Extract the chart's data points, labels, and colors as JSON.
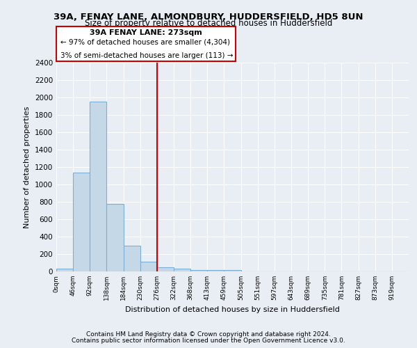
{
  "title1": "39A, FENAY LANE, ALMONDBURY, HUDDERSFIELD, HD5 8UN",
  "title2": "Size of property relative to detached houses in Huddersfield",
  "xlabel": "Distribution of detached houses by size in Huddersfield",
  "ylabel": "Number of detached properties",
  "x_labels": [
    "0sqm",
    "46sqm",
    "92sqm",
    "138sqm",
    "184sqm",
    "230sqm",
    "276sqm",
    "322sqm",
    "368sqm",
    "413sqm",
    "459sqm",
    "505sqm",
    "551sqm",
    "597sqm",
    "643sqm",
    "689sqm",
    "735sqm",
    "781sqm",
    "827sqm",
    "873sqm",
    "919sqm"
  ],
  "bar_values": [
    35,
    1140,
    1950,
    780,
    300,
    110,
    45,
    35,
    20,
    15,
    15,
    0,
    0,
    0,
    0,
    0,
    0,
    0,
    0,
    0,
    0
  ],
  "bar_color": "#c5d8e8",
  "bar_edge_color": "#7bafd4",
  "red_line_x": 6,
  "red_line_color": "#cc0000",
  "annotation_title": "39A FENAY LANE: 273sqm",
  "annotation_line1": "← 97% of detached houses are smaller (4,304)",
  "annotation_line2": "3% of semi-detached houses are larger (113) →",
  "annotation_box_color": "#cc0000",
  "ylim": [
    0,
    2400
  ],
  "yticks": [
    0,
    200,
    400,
    600,
    800,
    1000,
    1200,
    1400,
    1600,
    1800,
    2000,
    2200,
    2400
  ],
  "footer1": "Contains HM Land Registry data © Crown copyright and database right 2024.",
  "footer2": "Contains public sector information licensed under the Open Government Licence v3.0.",
  "bg_color": "#e8eef4",
  "plot_bg_color": "#e8eef4"
}
